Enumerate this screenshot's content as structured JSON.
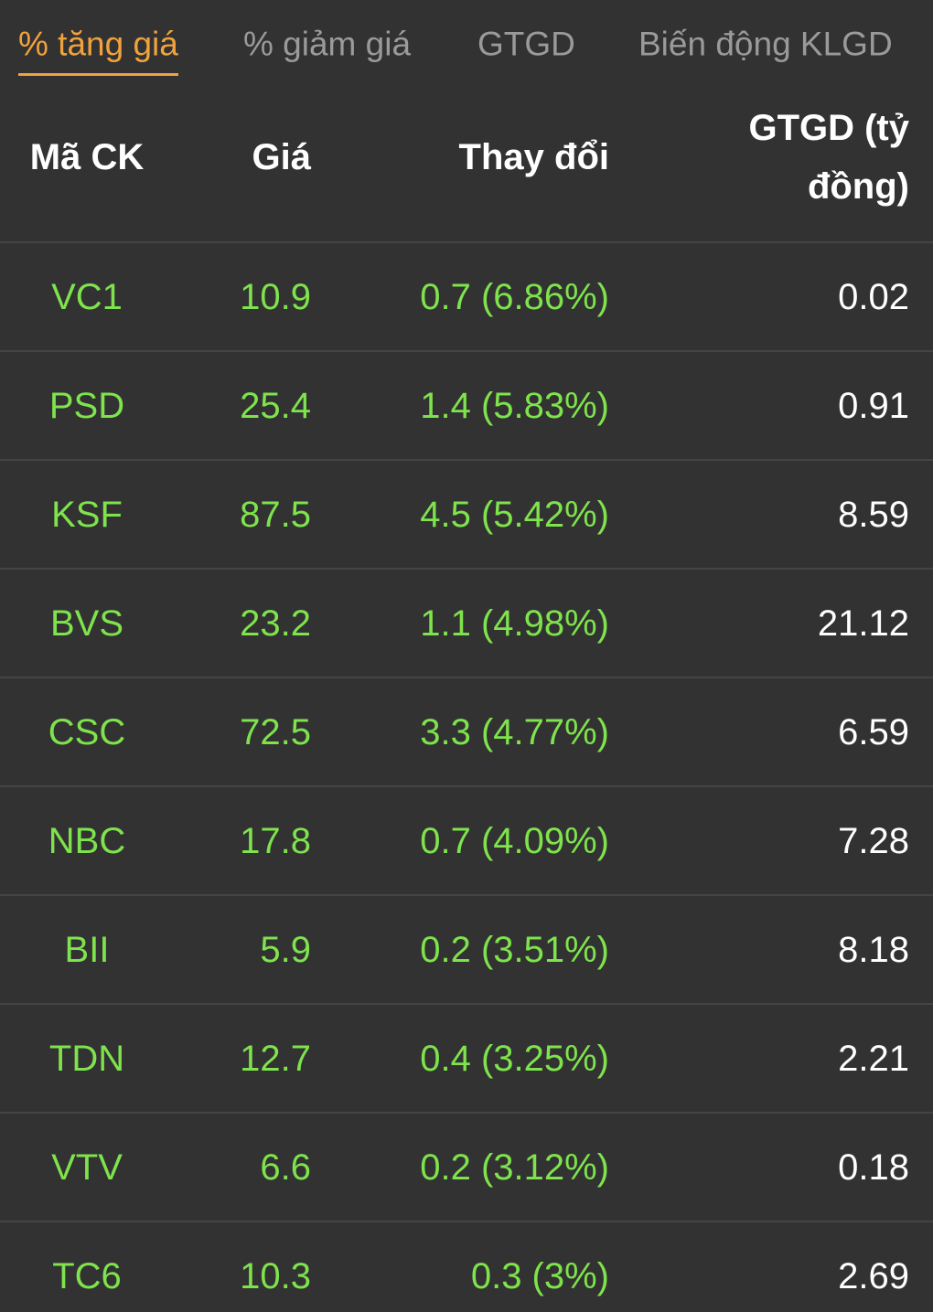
{
  "tabs": [
    "% tăng giá",
    "% giảm giá",
    "GTGD",
    "Biến động KLGD"
  ],
  "active_tab": 0,
  "table": {
    "columns": [
      "Mã CK",
      "Giá",
      "Thay đổi",
      "GTGD (tỷ đồng)"
    ],
    "rows": [
      [
        "VC1",
        "10.9",
        "0.7 (6.86%)",
        "0.02"
      ],
      [
        "PSD",
        "25.4",
        "1.4 (5.83%)",
        "0.91"
      ],
      [
        "KSF",
        "87.5",
        "4.5 (5.42%)",
        "8.59"
      ],
      [
        "BVS",
        "23.2",
        "1.1 (4.98%)",
        "21.12"
      ],
      [
        "CSC",
        "72.5",
        "3.3 (4.77%)",
        "6.59"
      ],
      [
        "NBC",
        "17.8",
        "0.7 (4.09%)",
        "7.28"
      ],
      [
        "BII",
        "5.9",
        "0.2 (3.51%)",
        "8.18"
      ],
      [
        "TDN",
        "12.7",
        "0.4 (3.25%)",
        "2.21"
      ],
      [
        "VTV",
        "6.6",
        "0.2 (3.12%)",
        "0.18"
      ],
      [
        "TC6",
        "10.3",
        "0.3 (3%)",
        "2.69"
      ]
    ]
  }
}
